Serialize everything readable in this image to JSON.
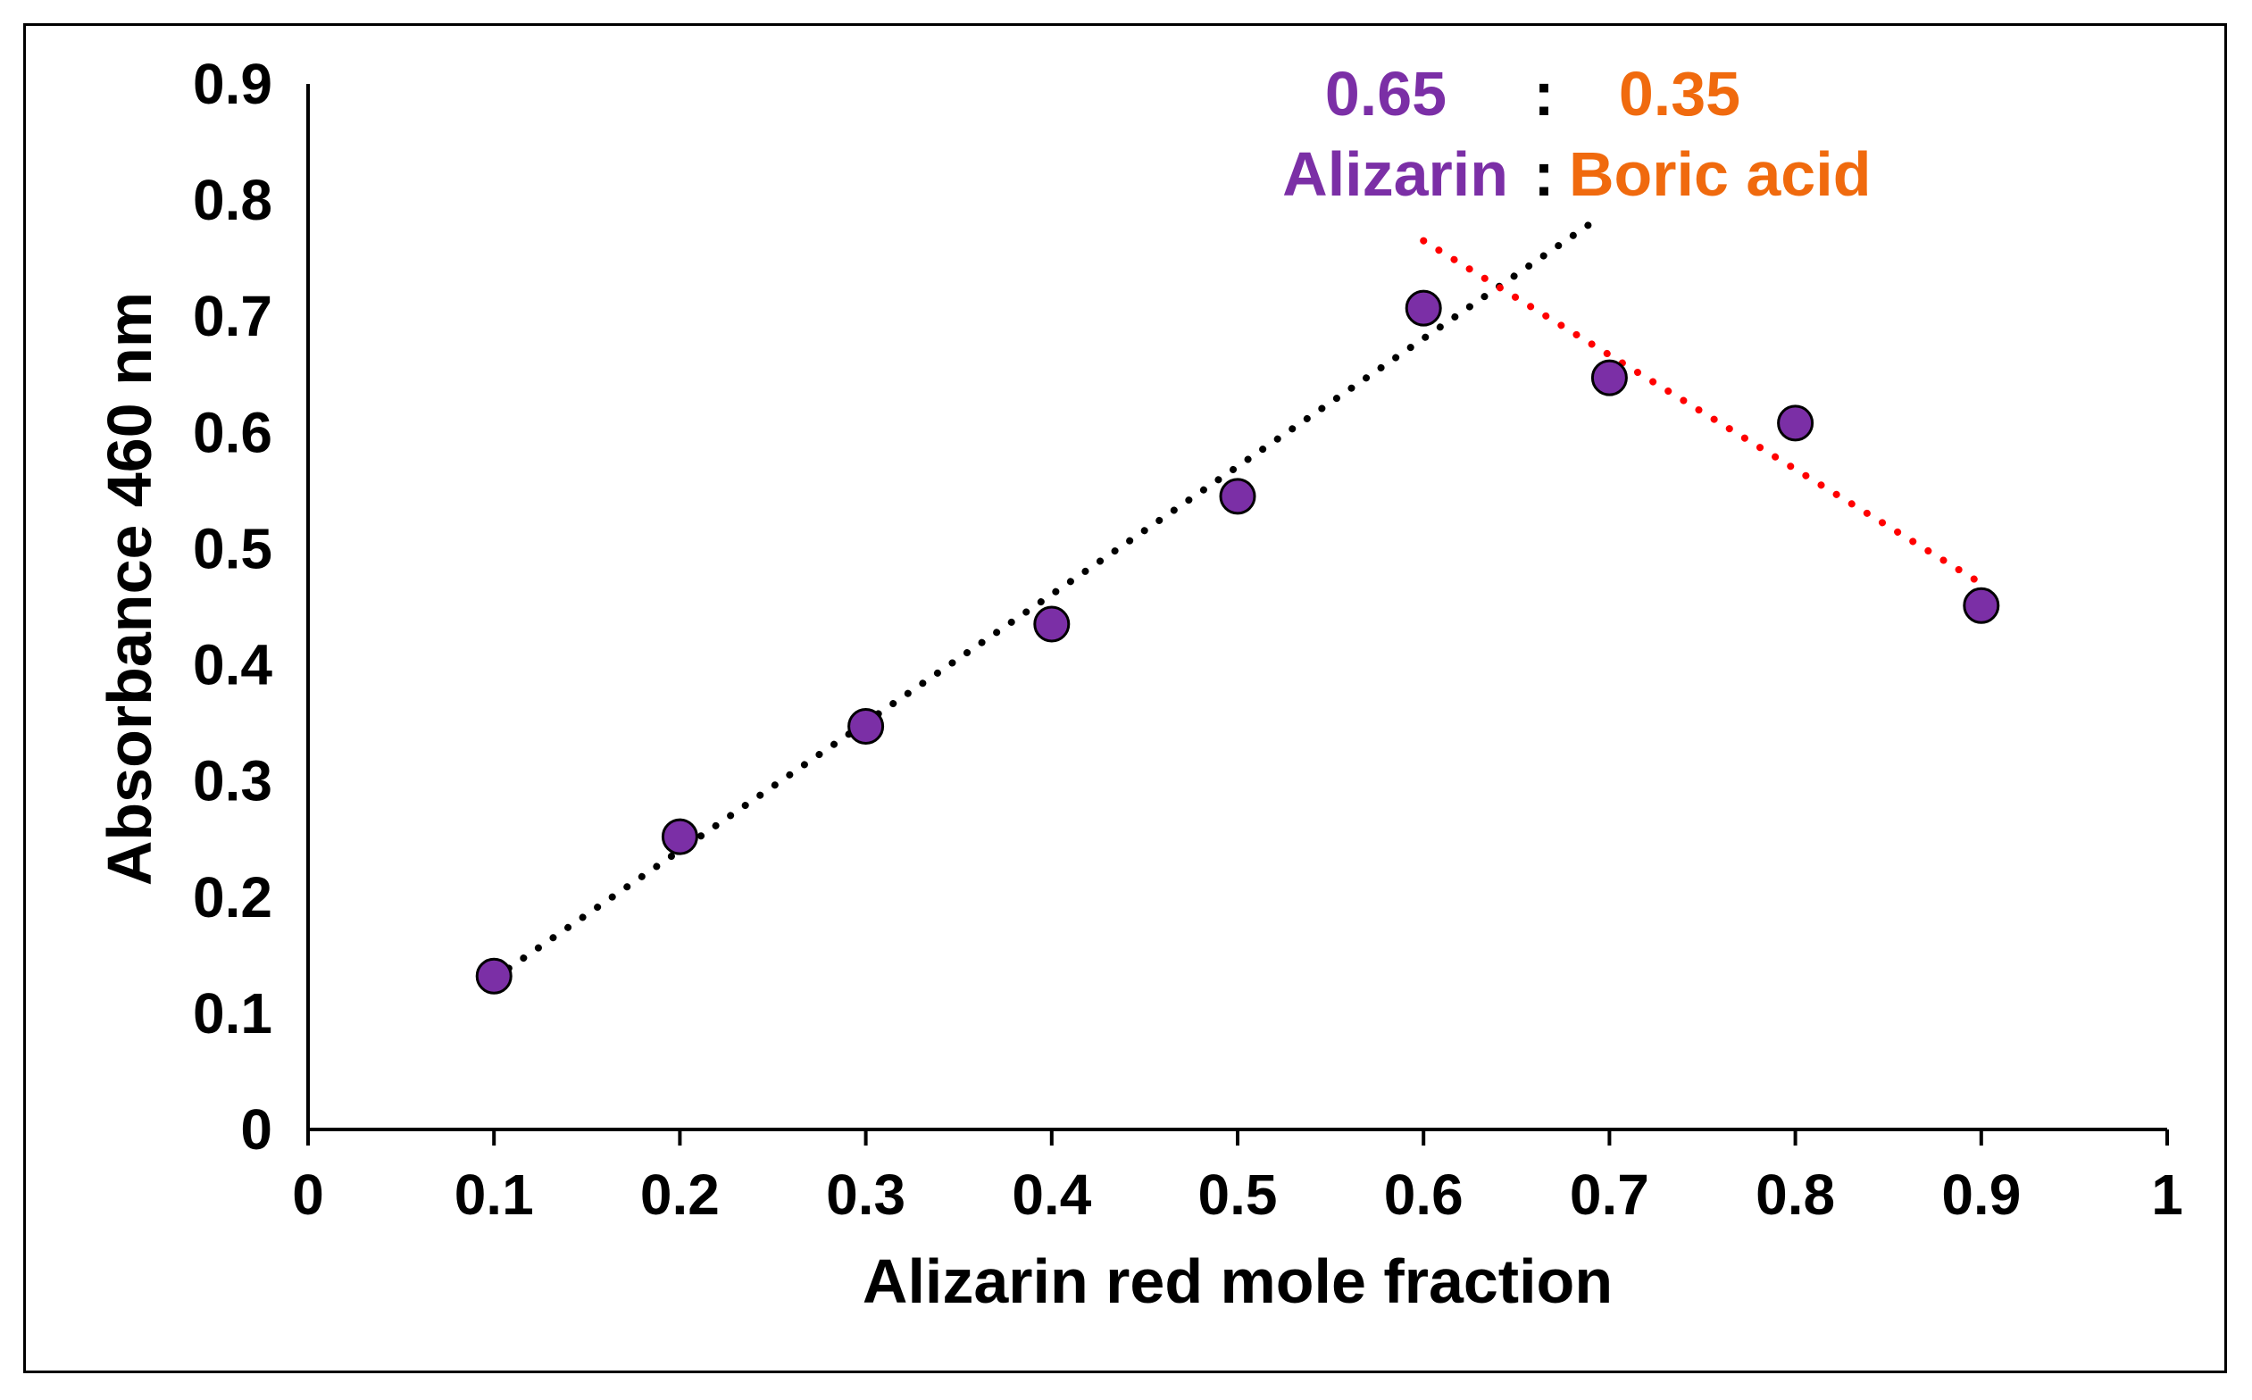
{
  "chart_data": {
    "type": "scatter",
    "title": "",
    "xlabel": "Alizarin red mole fraction",
    "ylabel": "Absorbance 460 nm",
    "xlim": [
      0,
      1
    ],
    "ylim": [
      0,
      0.9
    ],
    "x_ticks": [
      "0",
      "0.1",
      "0.2",
      "0.3",
      "0.4",
      "0.5",
      "0.6",
      "0.7",
      "0.8",
      "0.9",
      "1"
    ],
    "y_ticks": [
      "0",
      "0.1",
      "0.2",
      "0.3",
      "0.4",
      "0.5",
      "0.6",
      "0.7",
      "0.8",
      "0.9"
    ],
    "grid": false,
    "series": [
      {
        "name": "Absorbance",
        "x": [
          0.1,
          0.2,
          0.3,
          0.4,
          0.5,
          0.6,
          0.7,
          0.8,
          0.9
        ],
        "y": [
          0.132,
          0.252,
          0.347,
          0.435,
          0.545,
          0.707,
          0.647,
          0.608,
          0.451
        ],
        "marker_color": "#7b2fa6"
      }
    ],
    "trendlines": [
      {
        "name": "rising-trend",
        "x": [
          0.1,
          0.69
        ],
        "y": [
          0.13,
          0.78
        ],
        "color": "#000000",
        "style": "dotted"
      },
      {
        "name": "falling-trend",
        "x": [
          0.6,
          0.9
        ],
        "y": [
          0.765,
          0.47
        ],
        "color": "#ff0000",
        "style": "dotted"
      }
    ],
    "annotation": {
      "ratio_left": "0.65",
      "ratio_sep": ":",
      "ratio_right": "0.35",
      "name_left": "Alizarin",
      "name_sep": ":",
      "name_right": "Boric acid",
      "left_color": "#7b2fa6",
      "right_color": "#f06a0e"
    }
  }
}
